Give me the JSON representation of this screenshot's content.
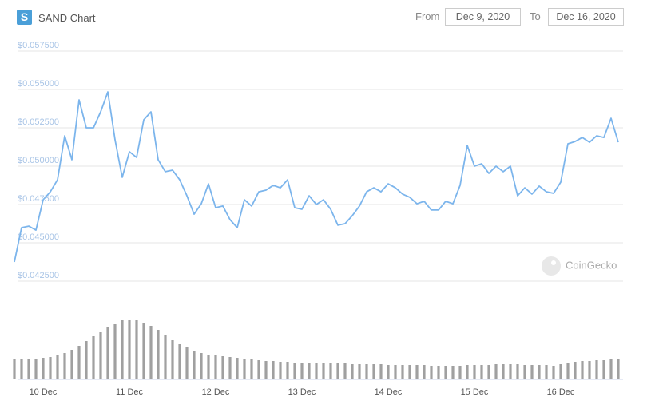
{
  "header": {
    "logo": "S",
    "title": "SAND Chart",
    "from_label": "From",
    "from_date": "Dec 9, 2020",
    "to_label": "To",
    "to_date": "Dec 16, 2020"
  },
  "watermark": "CoinGecko",
  "chart_data": {
    "type": "line",
    "categories": [
      null,
      null,
      null,
      null,
      "10 Dec",
      null,
      null,
      null,
      null,
      null,
      null,
      null,
      null,
      null,
      null,
      null,
      "11 Dec",
      null,
      null,
      null,
      null,
      null,
      null,
      null,
      null,
      null,
      null,
      null,
      "12 Dec",
      null,
      null,
      null,
      null,
      null,
      null,
      null,
      null,
      null,
      null,
      null,
      "13 Dec",
      null,
      null,
      null,
      null,
      null,
      null,
      null,
      null,
      null,
      null,
      null,
      "14 Dec",
      null,
      null,
      null,
      null,
      null,
      null,
      null,
      null,
      null,
      null,
      null,
      "15 Dec",
      null,
      null,
      null,
      null,
      null,
      null,
      null,
      null,
      null,
      null,
      null,
      "16 Dec",
      null,
      null,
      null,
      null,
      null,
      null,
      null,
      null
    ],
    "series": [
      {
        "color": "#7cb5ec",
        "values": [
          0.04375,
          0.04599,
          0.04609,
          0.04583,
          0.04781,
          0.04833,
          0.04911,
          0.05198,
          0.05042,
          0.05432,
          0.0525,
          0.0525,
          0.05354,
          0.05484,
          0.05172,
          0.04927,
          0.05094,
          0.05057,
          0.05302,
          0.05354,
          0.05042,
          0.04964,
          0.04974,
          0.04911,
          0.04807,
          0.04687,
          0.04755,
          0.04885,
          0.04729,
          0.0474,
          0.04651,
          0.04599,
          0.04781,
          0.0474,
          0.04833,
          0.04844,
          0.04875,
          0.04859,
          0.04911,
          0.04729,
          0.04719,
          0.04807,
          0.0475,
          0.04781,
          0.04719,
          0.04615,
          0.04625,
          0.04677,
          0.0474,
          0.04833,
          0.04859,
          0.04833,
          0.04885,
          0.04859,
          0.04818,
          0.04797,
          0.04755,
          0.04771,
          0.04714,
          0.04714,
          0.04771,
          0.04755,
          0.04875,
          0.05135,
          0.05,
          0.05016,
          0.04953,
          0.05,
          0.04964,
          0.05,
          0.04807,
          0.04859,
          0.04818,
          0.0487,
          0.04833,
          0.04823,
          0.04896,
          0.05146,
          0.05161,
          0.05187,
          0.05156,
          0.05198,
          0.05187,
          0.05312,
          0.05156
        ]
      },
      {
        "color": "#a0a0a0",
        "values": [
          25,
          25,
          26,
          26,
          27,
          28,
          30,
          33,
          37,
          42,
          48,
          54,
          60,
          66,
          70,
          74,
          75,
          74,
          71,
          67,
          62,
          56,
          50,
          45,
          40,
          36,
          33,
          31,
          30,
          29,
          28,
          27,
          26,
          25,
          24,
          23,
          23,
          22,
          22,
          21,
          21,
          21,
          20,
          20,
          20,
          20,
          20,
          19,
          19,
          19,
          19,
          19,
          18,
          18,
          18,
          18,
          18,
          18,
          17,
          17,
          17,
          17,
          17,
          18,
          18,
          18,
          18,
          19,
          19,
          19,
          19,
          18,
          18,
          18,
          18,
          17,
          19,
          21,
          22,
          23,
          23,
          24,
          24,
          25,
          25
        ]
      }
    ],
    "ylim": [
      0.0425,
      0.0575
    ],
    "yticks": [
      {
        "value": 0.0575,
        "label": "$0.057500"
      },
      {
        "value": 0.055,
        "label": "$0.055000"
      },
      {
        "value": 0.0525,
        "label": "$0.052500"
      },
      {
        "value": 0.05,
        "label": "$0.050000"
      },
      {
        "value": 0.0475,
        "label": "$0.047500"
      },
      {
        "value": 0.045,
        "label": "$0.045000"
      },
      {
        "value": 0.0425,
        "label": "$0.042500"
      }
    ],
    "grid": true
  }
}
